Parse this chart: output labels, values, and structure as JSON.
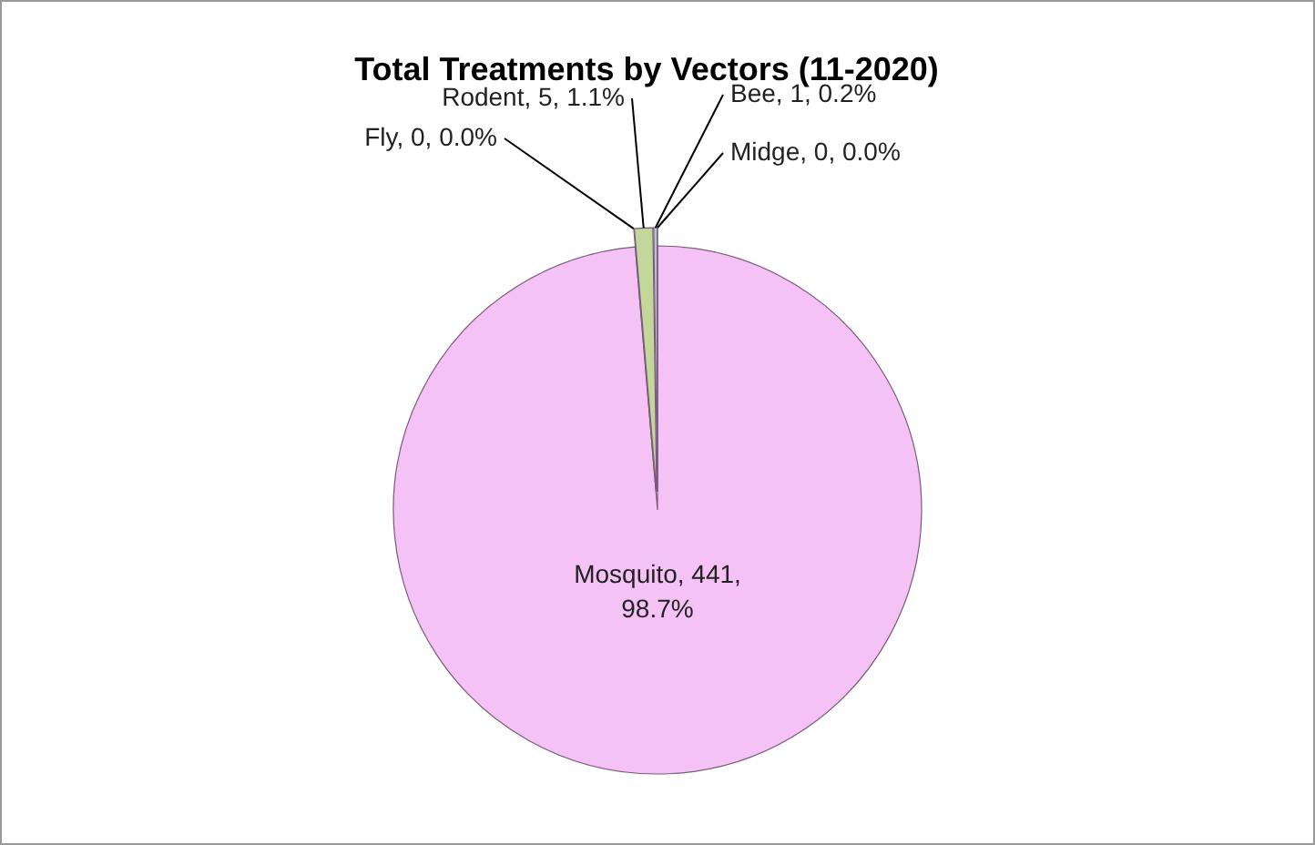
{
  "chart_data": {
    "type": "pie",
    "title": "Total Treatments by Vectors (11-2020)",
    "categories": [
      "Mosquito",
      "Fly",
      "Rodent",
      "Bee",
      "Midge"
    ],
    "values": [
      441,
      0,
      5,
      1,
      0
    ],
    "value_labels": [
      ", 441, 98.7%",
      ", 0, 0.0%",
      ", 5, 1.1%",
      ", 1, 0.2%",
      ", 0, 0.0%"
    ],
    "colors": [
      "#f4c2f4",
      "#9bbb59",
      "#c4d79b",
      "#b7c3d6",
      "#8064a2"
    ]
  }
}
